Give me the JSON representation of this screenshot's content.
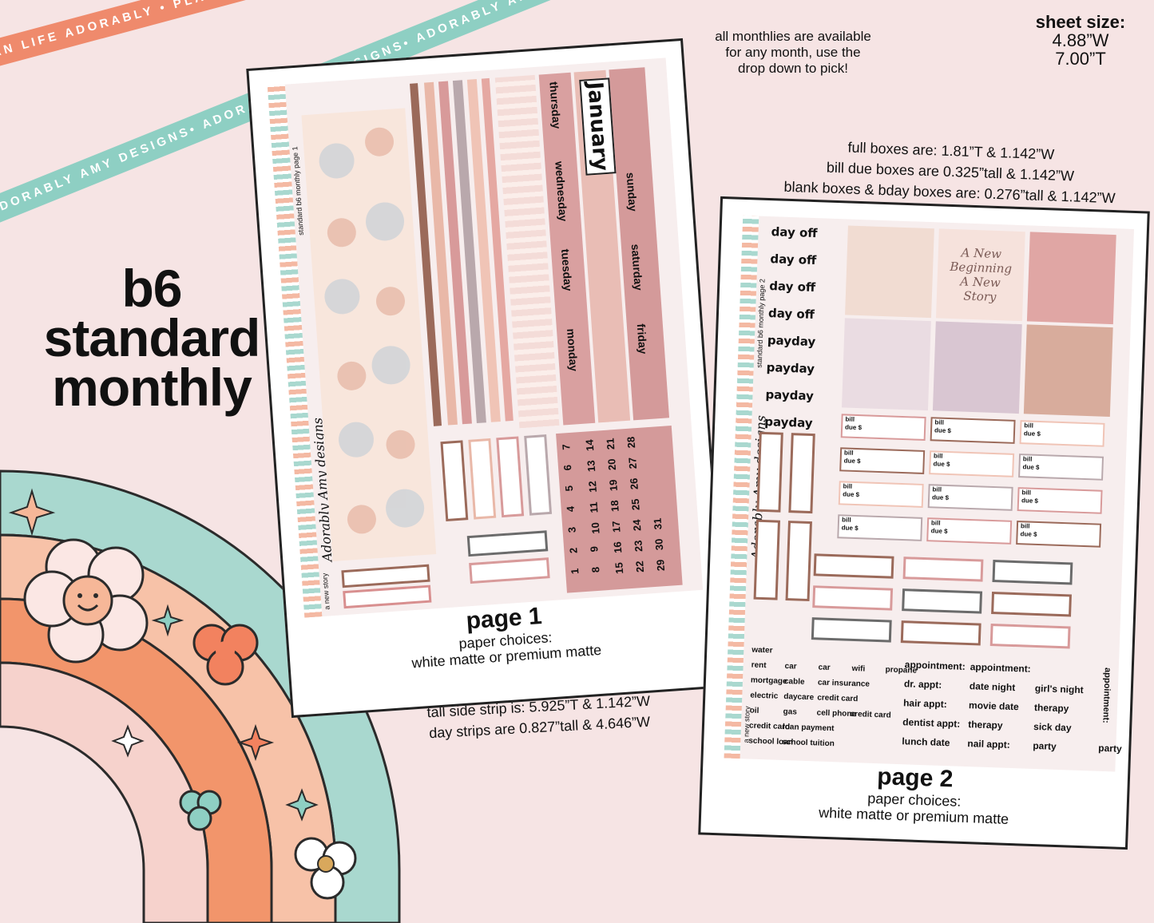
{
  "ribbons": {
    "orange": "PLAN LIFE ADORABLY • PLAN LIFE ADORABLY • PLAN LIFE ADORABLY •",
    "teal": "ADORABLY AMY DESIGNS• ADORABLY AMY DESIGNS• ADORABLY AMY DESIGNS•"
  },
  "title": {
    "line1": "b6",
    "line2": "standard",
    "line3": "monthly"
  },
  "sheet_size": {
    "label": "sheet size:",
    "width": "4.88”W",
    "tall": "7.00”T"
  },
  "months_note": {
    "line1": "all monthlies are available",
    "line2": "for any month, use the",
    "line3": "drop down to pick!"
  },
  "boxes_note": {
    "line1": "full boxes are: 1.81”T & 1.142”W",
    "line2": "bill due boxes are 0.325”tall & 1.142”W",
    "line3": "blank boxes & bday boxes are: 0.276”tall & 1.142”W"
  },
  "strip_note": {
    "line1": "tall side strip is: 5.925”T & 1.142”W",
    "line2": "day strips are 0.827”tall & 4.646”W"
  },
  "page1": {
    "side_label": "standard b6 monthly page 1",
    "kit_name": "a new story",
    "brand": "Adorably Amy designs",
    "month": "January",
    "days": [
      "monday",
      "tuesday",
      "wednesday",
      "thursday",
      "friday",
      "saturday",
      "sunday"
    ],
    "numbers": [
      "7",
      "14",
      "21",
      "28",
      "6",
      "13",
      "20",
      "27",
      "5",
      "12",
      "19",
      "26",
      "4",
      "11",
      "18",
      "25",
      "3",
      "10",
      "17",
      "24",
      "31",
      "2",
      "9",
      "16",
      "23",
      "30",
      "1",
      "8",
      "15",
      "22",
      "29"
    ],
    "caption": {
      "title": "page 1",
      "line1": "paper choices:",
      "line2": "white matte or premium matte"
    }
  },
  "page2": {
    "side_label": "standard b6 monthly page 2",
    "kit_name": "a new story",
    "brand": "Adorably Amy designs",
    "labels": [
      "day off",
      "day off",
      "day off",
      "day off",
      "payday",
      "payday",
      "payday",
      "payday"
    ],
    "quote": "A New Beginning A New Story",
    "bill_text": {
      "bill": "bill",
      "due": "due $"
    },
    "small_words": [
      [
        "water"
      ],
      [
        "rent",
        "car",
        "car",
        "wifi",
        "propane"
      ],
      [
        "mortgage",
        "cable",
        "car insurance"
      ],
      [
        "electric",
        "daycare",
        "credit card"
      ],
      [
        "oil",
        "gas",
        "cell phone",
        "credit card"
      ],
      [
        "credit card",
        "loan payment"
      ],
      [
        "school loan",
        "school tuition"
      ]
    ],
    "big_words": [
      [
        "appointment:",
        "appointment:"
      ],
      [
        "dr. appt:",
        "date night",
        "girl's night"
      ],
      [
        "hair appt:",
        "movie date",
        "therapy"
      ],
      [
        "dentist appt:",
        "therapy",
        "sick day"
      ],
      [
        "lunch date",
        "nail appt:",
        "party",
        "party"
      ]
    ],
    "vertical_word": "appointment:",
    "caption": {
      "title": "page 2",
      "line1": "paper choices:",
      "line2": "white matte or premium matte"
    }
  }
}
